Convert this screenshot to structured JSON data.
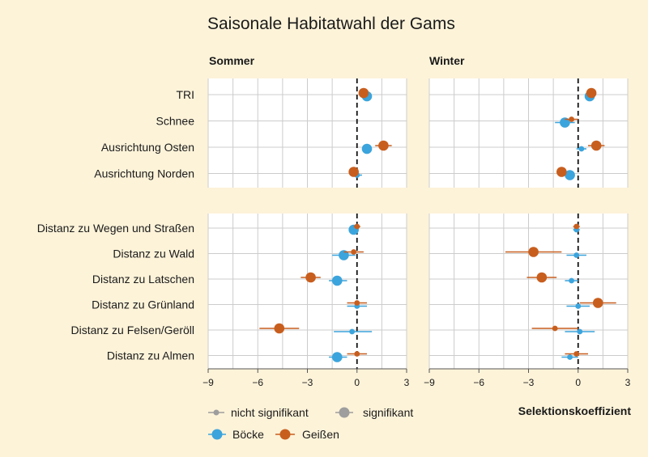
{
  "chart_data": {
    "type": "scatter",
    "title": "Saisonale Habitatwahl der Gams",
    "xlabel": "Selektionskoeffizient",
    "xlim": [
      -9,
      3
    ],
    "xticks": [
      -9,
      -6,
      -3,
      0,
      3
    ],
    "xtick_labels": [
      "−9",
      "−6",
      "−3",
      "0",
      "3"
    ],
    "facets": [
      "Sommer",
      "Winter"
    ],
    "groups": [
      {
        "name": "top",
        "categories": [
          "TRI",
          "Schnee",
          "Ausrichtung Osten",
          "Ausrichtung Norden"
        ]
      },
      {
        "name": "bottom",
        "categories": [
          "Distanz zu Wegen und Straßen",
          "Distanz zu Wald",
          "Distanz zu Latschen",
          "Distanz zu Grünland",
          "Distanz zu Felsen/Geröll",
          "Distanz zu Almen"
        ]
      }
    ],
    "colors": {
      "boecke": "#3ba4dc",
      "geissen": "#c85e1e",
      "legend_grey": "#9e9e9e",
      "panel_bg": "#ffffff",
      "page_bg": "#fdf3d9",
      "grid": "#cccccc"
    },
    "legend": {
      "size_items": [
        "nicht signifikant",
        "signifikant"
      ],
      "color_items": [
        "Böcke",
        "Geißen"
      ],
      "placement": "bottom"
    },
    "series": [
      {
        "name": "Böcke",
        "color": "#3ba4dc",
        "panels": {
          "Sommer": [
            {
              "category": "TRI",
              "x": 0.6,
              "ci": [
                0.4,
                0.8
              ],
              "sig": true
            },
            {
              "category": "Ausrichtung Osten",
              "x": 0.6,
              "ci": [
                0.4,
                0.8
              ],
              "sig": true
            },
            {
              "category": "Ausrichtung Norden",
              "x": 0.0,
              "ci": [
                -0.3,
                0.3
              ],
              "sig": false
            },
            {
              "category": "Distanz zu Wegen und Straßen",
              "x": -0.2,
              "ci": [
                -0.4,
                0.0
              ],
              "sig": true
            },
            {
              "category": "Distanz zu Wald",
              "x": -0.8,
              "ci": [
                -1.5,
                -0.1
              ],
              "sig": true
            },
            {
              "category": "Distanz zu Latschen",
              "x": -1.2,
              "ci": [
                -1.7,
                -0.6
              ],
              "sig": true
            },
            {
              "category": "Distanz zu Grünland",
              "x": 0.0,
              "ci": [
                -0.6,
                0.6
              ],
              "sig": false
            },
            {
              "category": "Distanz zu Felsen/Geröll",
              "x": -0.3,
              "ci": [
                -1.4,
                0.9
              ],
              "sig": false
            },
            {
              "category": "Distanz zu Almen",
              "x": -1.2,
              "ci": [
                -1.7,
                -0.6
              ],
              "sig": true
            }
          ],
          "Winter": [
            {
              "category": "TRI",
              "x": 0.7,
              "ci": [
                0.5,
                0.9
              ],
              "sig": true
            },
            {
              "category": "Schnee",
              "x": -0.8,
              "ci": [
                -1.4,
                -0.2
              ],
              "sig": true
            },
            {
              "category": "Ausrichtung Osten",
              "x": 0.2,
              "ci": [
                -0.1,
                0.5
              ],
              "sig": false
            },
            {
              "category": "Ausrichtung Norden",
              "x": -0.5,
              "ci": [
                -0.8,
                -0.2
              ],
              "sig": true
            },
            {
              "category": "Distanz zu Wegen und Straßen",
              "x": -0.1,
              "ci": [
                -0.3,
                0.1
              ],
              "sig": false
            },
            {
              "category": "Distanz zu Wald",
              "x": -0.1,
              "ci": [
                -0.7,
                0.5
              ],
              "sig": false
            },
            {
              "category": "Distanz zu Latschen",
              "x": -0.4,
              "ci": [
                -0.8,
                0.0
              ],
              "sig": false
            },
            {
              "category": "Distanz zu Grünland",
              "x": 0.0,
              "ci": [
                -0.7,
                0.7
              ],
              "sig": false
            },
            {
              "category": "Distanz zu Felsen/Geröll",
              "x": 0.1,
              "ci": [
                -0.8,
                1.0
              ],
              "sig": false
            },
            {
              "category": "Distanz zu Almen",
              "x": -0.5,
              "ci": [
                -1.0,
                0.0
              ],
              "sig": false
            }
          ]
        }
      },
      {
        "name": "Geißen",
        "color": "#c85e1e",
        "panels": {
          "Sommer": [
            {
              "category": "TRI",
              "x": 0.4,
              "ci": [
                0.2,
                0.6
              ],
              "sig": true
            },
            {
              "category": "Ausrichtung Osten",
              "x": 1.6,
              "ci": [
                1.1,
                2.1
              ],
              "sig": true
            },
            {
              "category": "Ausrichtung Norden",
              "x": -0.2,
              "ci": [
                -0.5,
                0.1
              ],
              "sig": true
            },
            {
              "category": "Distanz zu Wegen und Straßen",
              "x": 0.0,
              "ci": [
                -0.2,
                0.2
              ],
              "sig": false
            },
            {
              "category": "Distanz zu Wald",
              "x": -0.2,
              "ci": [
                -0.8,
                0.4
              ],
              "sig": false
            },
            {
              "category": "Distanz zu Latschen",
              "x": -2.8,
              "ci": [
                -3.4,
                -2.2
              ],
              "sig": true
            },
            {
              "category": "Distanz zu Grünland",
              "x": 0.0,
              "ci": [
                -0.6,
                0.6
              ],
              "sig": false
            },
            {
              "category": "Distanz zu Felsen/Geröll",
              "x": -4.7,
              "ci": [
                -5.9,
                -3.5
              ],
              "sig": true
            },
            {
              "category": "Distanz zu Almen",
              "x": 0.0,
              "ci": [
                -0.6,
                0.6
              ],
              "sig": false
            }
          ],
          "Winter": [
            {
              "category": "TRI",
              "x": 0.8,
              "ci": [
                0.6,
                1.0
              ],
              "sig": true
            },
            {
              "category": "Schnee",
              "x": -0.4,
              "ci": [
                -0.8,
                0.0
              ],
              "sig": false
            },
            {
              "category": "Ausrichtung Osten",
              "x": 1.1,
              "ci": [
                0.6,
                1.6
              ],
              "sig": true
            },
            {
              "category": "Ausrichtung Norden",
              "x": -1.0,
              "ci": [
                -1.3,
                -0.7
              ],
              "sig": true
            },
            {
              "category": "Distanz zu Wegen und Straßen",
              "x": -0.1,
              "ci": [
                -0.3,
                0.1
              ],
              "sig": false
            },
            {
              "category": "Distanz zu Wald",
              "x": -2.7,
              "ci": [
                -4.4,
                -1.0
              ],
              "sig": true
            },
            {
              "category": "Distanz zu Latschen",
              "x": -2.2,
              "ci": [
                -3.1,
                -1.3
              ],
              "sig": true
            },
            {
              "category": "Distanz zu Grünland",
              "x": 1.2,
              "ci": [
                0.1,
                2.3
              ],
              "sig": true
            },
            {
              "category": "Distanz zu Felsen/Geröll",
              "x": -1.4,
              "ci": [
                -2.8,
                0.0
              ],
              "sig": false
            },
            {
              "category": "Distanz zu Almen",
              "x": -0.1,
              "ci": [
                -0.8,
                0.6
              ],
              "sig": false
            }
          ]
        }
      }
    ]
  }
}
